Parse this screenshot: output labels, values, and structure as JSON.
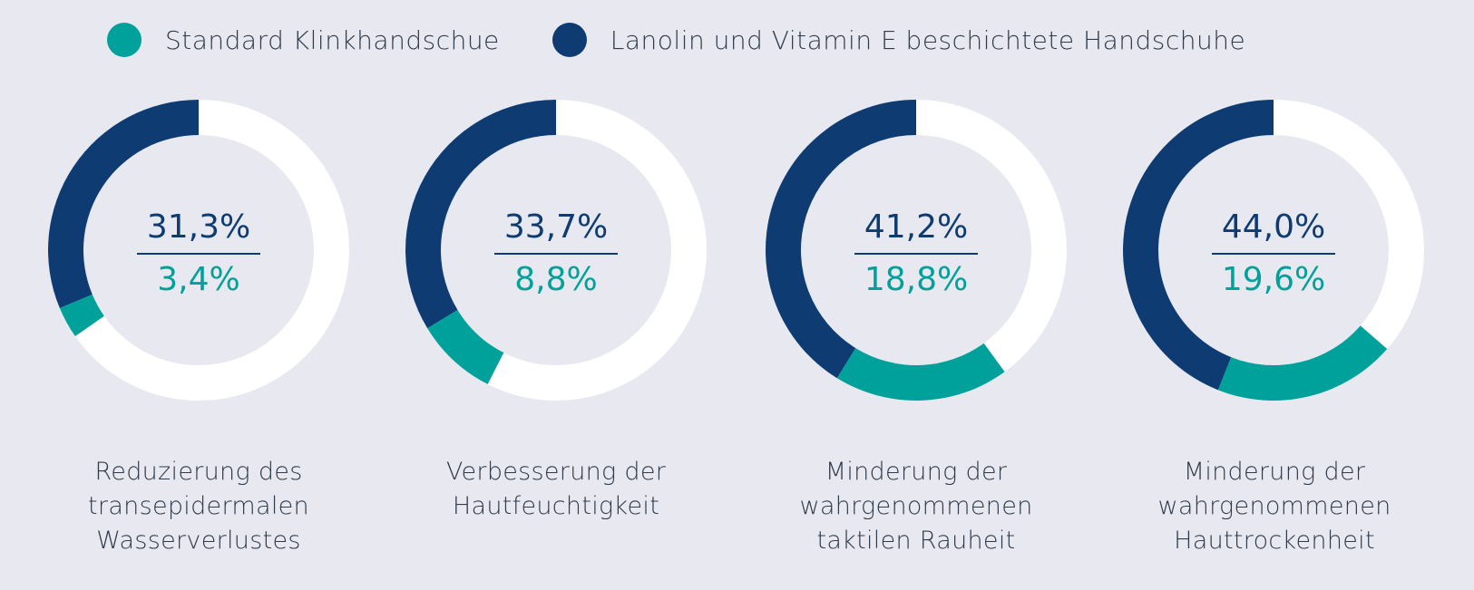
{
  "colors": {
    "standard": "#00a19a",
    "coated": "#0e3c72",
    "ring": "#ffffff",
    "background": "#e8e9f0"
  },
  "legend": [
    {
      "label": "Standard Klinkhandschue",
      "color": "#00a19a"
    },
    {
      "label": "Lanolin und Vitamin E beschichtete Handschuhe",
      "color": "#0e3c72"
    }
  ],
  "chart_data": [
    {
      "type": "pie",
      "title": "Reduzierung des\ntransepidermalen\nWasserverlustes",
      "series": [
        {
          "name": "Lanolin und Vitamin E beschichtete Handschuhe",
          "value": 31.3,
          "label": "31,3%"
        },
        {
          "name": "Standard Klinkhandschue",
          "value": 3.4,
          "label": "3,4%"
        }
      ]
    },
    {
      "type": "pie",
      "title": "Verbesserung der\nHautfeuchtigkeit",
      "series": [
        {
          "name": "Lanolin und Vitamin E beschichtete Handschuhe",
          "value": 33.7,
          "label": "33,7%"
        },
        {
          "name": "Standard Klinkhandschue",
          "value": 8.8,
          "label": "8,8%"
        }
      ]
    },
    {
      "type": "pie",
      "title": "Minderung der\nwahrgenommenen\ntaktilen Rauheit",
      "series": [
        {
          "name": "Lanolin und Vitamin E beschichtete Handschuhe",
          "value": 41.2,
          "label": "41,2%"
        },
        {
          "name": "Standard Klinkhandschue",
          "value": 18.8,
          "label": "18,8%"
        }
      ]
    },
    {
      "type": "pie",
      "title": "Minderung der\nwahrgenommenen\nHauttrockenheit",
      "series": [
        {
          "name": "Lanolin und Vitamin E beschichtete Handschuhe",
          "value": 44.0,
          "label": "44,0%"
        },
        {
          "name": "Standard Klinkhandschue",
          "value": 19.6,
          "label": "19,6%"
        }
      ]
    }
  ]
}
